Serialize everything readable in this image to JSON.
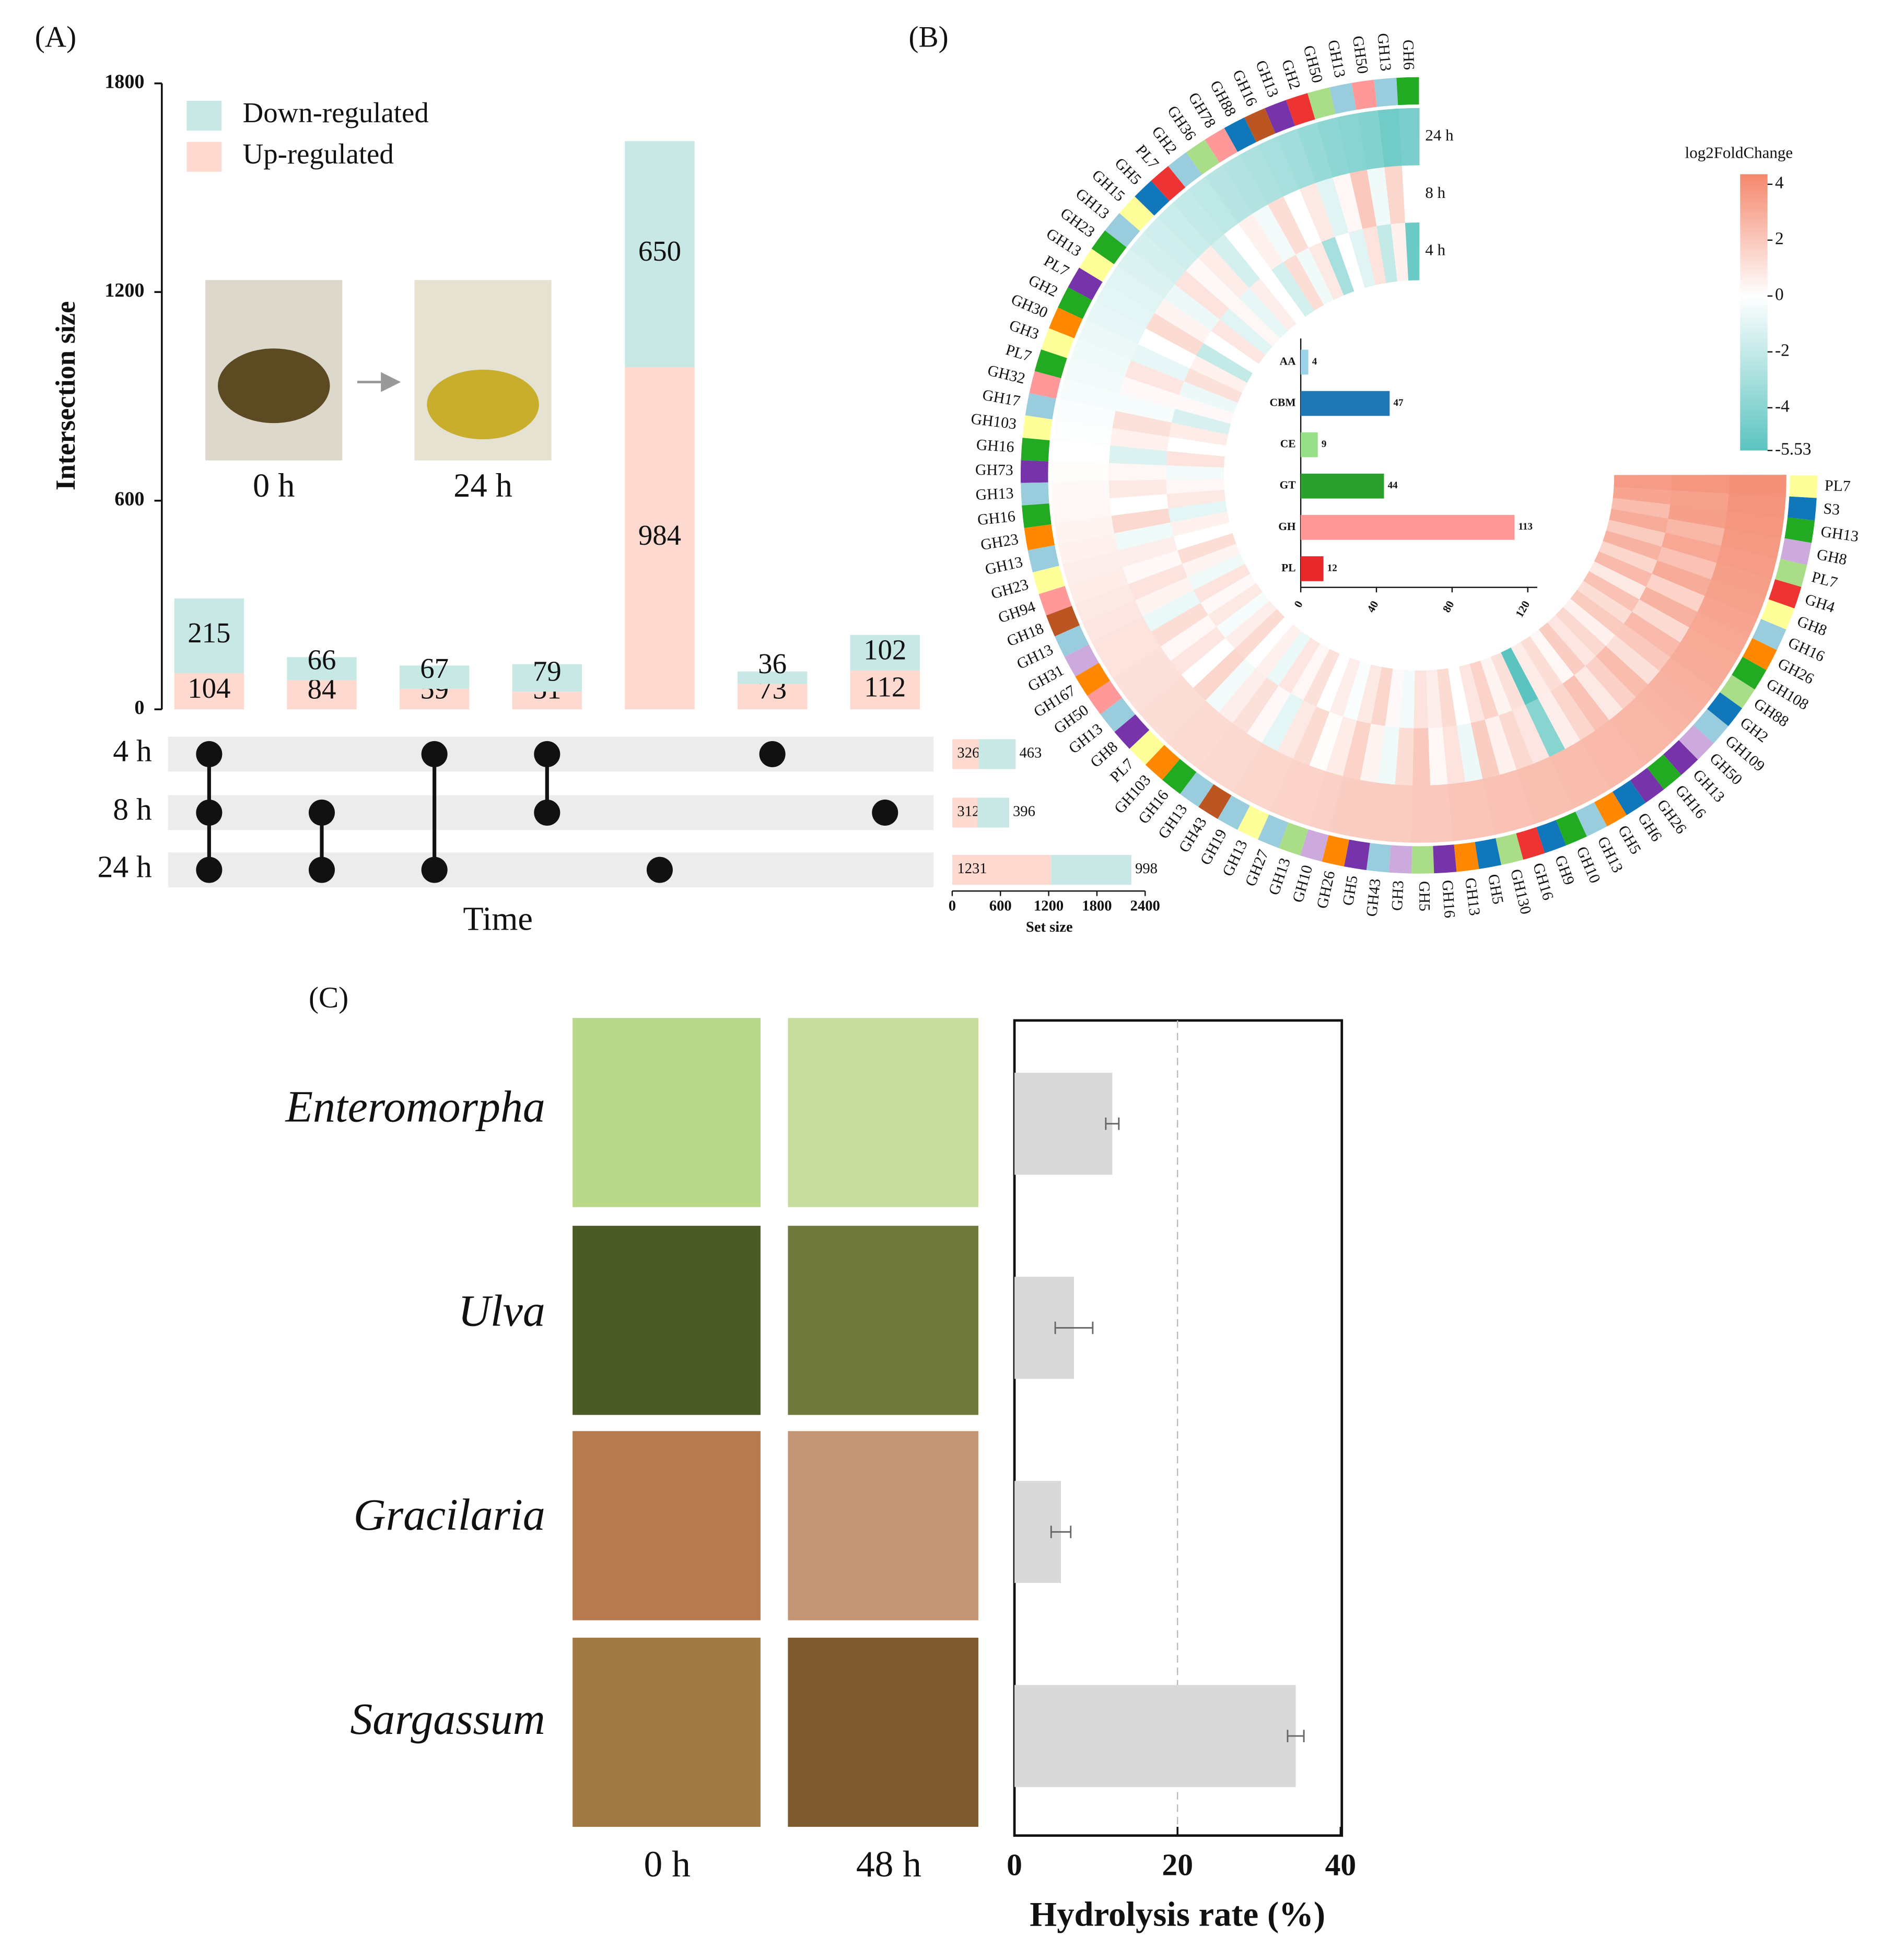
{
  "chart_data": [
    {
      "type": "upset",
      "panel_label": "(A)",
      "ylabel": "Intersection size",
      "xlabel": "Time",
      "ylim": [
        0,
        1800
      ],
      "yticks": [
        0,
        600,
        1200,
        1800
      ],
      "series": [
        {
          "name": "Up-regulated",
          "color": "#fdd9d0",
          "values": [
            104,
            84,
            59,
            51,
            984,
            73,
            112
          ]
        },
        {
          "name": "Down-regulated",
          "color": "#c8e8e6",
          "values": [
            215,
            66,
            67,
            79,
            650,
            36,
            102
          ]
        }
      ],
      "sets": [
        "4 h",
        "8 h",
        "24 h"
      ],
      "intersections": [
        [
          0,
          1,
          2
        ],
        [
          1,
          2
        ],
        [
          0,
          2
        ],
        [
          0,
          1
        ],
        [
          2
        ],
        [
          0
        ],
        [
          1
        ]
      ],
      "set_size_series": [
        {
          "values": [
            326,
            312,
            1231
          ]
        },
        {
          "values": [
            463,
            396,
            998
          ]
        }
      ],
      "set_xlim": [
        0,
        2400
      ],
      "set_xticks": [
        0,
        600,
        1200,
        1800,
        2400
      ],
      "set_xlabel": "Set size",
      "inset_labels": [
        "0 h",
        "24 h"
      ]
    },
    {
      "type": "circular_heatmap",
      "panel_label": "(B)",
      "rows": [
        "24 h",
        "8 h",
        "4 h"
      ],
      "labels": [
        "GH6",
        "GH13",
        "GH50",
        "GH13",
        "GH50",
        "GH2",
        "GH13",
        "GH16",
        "GH88",
        "GH78",
        "GH36",
        "GH2",
        "PL7",
        "GH5",
        "GH15",
        "GH13",
        "GH23",
        "GH13",
        "PL7",
        "GH2",
        "GH30",
        "GH3",
        "PL7",
        "GH32",
        "GH17",
        "GH103",
        "GH16",
        "GH73",
        "GH13",
        "GH16",
        "GH23",
        "GH13",
        "GH23",
        "GH94",
        "GH18",
        "GH13",
        "GH31",
        "GH167",
        "GH50",
        "GH13",
        "GH8",
        "PL7",
        "GH103",
        "GH16",
        "GH13",
        "GH43",
        "GH19",
        "GH13",
        "GH27",
        "GH13",
        "GH10",
        "GH26",
        "GH5",
        "GH43",
        "GH3",
        "GH5",
        "GH16",
        "GH13",
        "GH5",
        "GH130",
        "GH16",
        "GH9",
        "GH10",
        "GH13",
        "GH5",
        "GH6",
        "GH26",
        "GH16",
        "GH13",
        "GH50",
        "GH109",
        "GH2",
        "GH88",
        "GH108",
        "GH26",
        "GH16",
        "GH8",
        "GH4",
        "PL7",
        "GH8",
        "GH13",
        "S3",
        "PL7"
      ],
      "label_colors": [
        "#2a2",
        "#9cd",
        "#f99",
        "#9cd",
        "#ad8",
        "#e33",
        "#73a",
        "#b52",
        "#17b",
        "#f99",
        "#ad8",
        "#9cd",
        "#e33",
        "#17b",
        "#ff9",
        "#9cd",
        "#2a2",
        "#ff9",
        "#73a",
        "#2a2",
        "#f80",
        "#ff9",
        "#2a2",
        "#f99",
        "#9cd",
        "#ff9",
        "#2a2",
        "#73a",
        "#9cd",
        "#2a2",
        "#f80",
        "#9cd",
        "#ff9",
        "#f99",
        "#b52",
        "#9cd",
        "#cad",
        "#f80",
        "#f99",
        "#9cd",
        "#73a",
        "#ff9",
        "#f80",
        "#2a2",
        "#9cd",
        "#b52",
        "#9cd",
        "#ff9",
        "#9cd",
        "#ad8",
        "#cad",
        "#f80",
        "#73a",
        "#9cd",
        "#cad",
        "#ad8",
        "#73a",
        "#f80",
        "#17b",
        "#ad8",
        "#e33",
        "#17b",
        "#2a2",
        "#9cd",
        "#f80",
        "#17b",
        "#73a",
        "#2a2",
        "#73a",
        "#cad",
        "#9cd",
        "#17b",
        "#ad8",
        "#2a2",
        "#f80",
        "#9cd",
        "#ff9",
        "#e33",
        "#ad8",
        "#cad",
        "#2a2",
        "#17b",
        "#ff9"
      ],
      "values": [
        [
          -4.5,
          -4.8,
          -4.2,
          -4,
          -3.8,
          -3.5,
          -3.2,
          -3,
          -2.8,
          -2.6,
          -2.4,
          -2.2,
          -2,
          -1.8,
          -1.6,
          -1.4,
          -1.2,
          -1,
          -0.9,
          -0.8,
          -0.6,
          -0.5,
          -0.4,
          -0.3,
          -0.2,
          -0.1,
          0,
          0.1,
          0.2,
          0.3,
          0.4,
          0.5,
          0.6,
          0.7,
          0.8,
          0.9,
          1,
          1,
          1.1,
          1.1,
          1.2,
          1.2,
          1.3,
          1.3,
          1.4,
          1.4,
          1.5,
          1.5,
          1.6,
          1.6,
          1.7,
          1.8,
          1.8,
          1.9,
          1.9,
          2,
          2,
          2.1,
          2.1,
          2.2,
          2.2,
          2.3,
          2.3,
          2.4,
          2.4,
          2.5,
          2.5,
          2.6,
          2.6,
          2.7,
          2.8,
          2.9,
          3,
          3.1,
          3.2,
          3.3,
          3.4,
          3.5,
          3.6,
          3.7,
          3.8,
          3.9,
          4
        ],
        [
          0,
          1.5,
          -0.5,
          2,
          0.3,
          -1,
          0.8,
          0,
          1.2,
          -0.4,
          0.5,
          0,
          -1.5,
          0.7,
          0.2,
          1,
          -0.6,
          0.4,
          1.3,
          0,
          -0.8,
          0.9,
          0.2,
          -0.3,
          1.1,
          0.5,
          -1.2,
          0.3,
          0.8,
          0,
          1.4,
          -0.5,
          0.6,
          0.2,
          1,
          0.4,
          -0.7,
          1.2,
          0.3,
          0.9,
          0,
          1.5,
          -0.4,
          0.6,
          1.1,
          0.2,
          -0.9,
          0.8,
          1.3,
          0.1,
          0.7,
          1.6,
          0.4,
          -0.5,
          1.2,
          2,
          0.3,
          1,
          -0.6,
          1.8,
          0.5,
          1.4,
          0.9,
          -4,
          0.6,
          1.5,
          2.2,
          0.8,
          1.7,
          2.4,
          1.1,
          2,
          2.5,
          1.3,
          2.8,
          1.6,
          3,
          2.2,
          3.2,
          2.6,
          3.5,
          3.4,
          3.8
        ],
        [
          -5,
          0.5,
          -2,
          1,
          -1,
          0,
          -3,
          0.8,
          -0.5,
          1.2,
          -1.5,
          0,
          0.6,
          -0.8,
          0.3,
          -1,
          0.9,
          0,
          -2,
          0.5,
          1.1,
          -0.6,
          0.2,
          -1.3,
          0.7,
          0,
          1,
          -0.4,
          0.3,
          0.8,
          -0.9,
          0.5,
          0,
          1.2,
          0.4,
          -0.5,
          1,
          0.2,
          0.8,
          -0.3,
          0.6,
          1.3,
          0,
          0.5,
          -0.7,
          0.9,
          0.3,
          1.1,
          0,
          0.6,
          -0.2,
          0.8,
          1.5,
          0.2,
          -0.4,
          1,
          0.6,
          1.3,
          0,
          0.9,
          1.6,
          0.4,
          1.1,
          -5.53,
          0.7,
          1.2,
          0.3,
          1.8,
          0.9,
          1.4,
          0.5,
          1.9,
          1.2,
          2.2,
          0.8,
          2.5,
          1.5,
          2.8,
          1.9,
          3,
          2.4,
          3.3,
          3.6
        ]
      ],
      "colorbar_title": "log2FoldChange",
      "clim": [
        -5.53,
        4.36
      ],
      "cticks": [
        4,
        2,
        0,
        -2,
        -4,
        -5.53
      ],
      "cmap": [
        "#5bc4c0",
        "#ffffff",
        "#f4876c"
      ],
      "inset": {
        "type": "bar",
        "categories": [
          "AA",
          "CBM",
          "CE",
          "GT",
          "GH",
          "PL"
        ],
        "values": [
          4,
          47,
          9,
          44,
          113,
          12
        ],
        "colors": [
          "#9dd3e8",
          "#1f77b4",
          "#98df8a",
          "#2ca02c",
          "#ff9896",
          "#e8282b"
        ],
        "xlim": [
          0,
          125
        ],
        "xticks": [
          0,
          40,
          80,
          120
        ]
      }
    },
    {
      "type": "hbar",
      "panel_label": "(C)",
      "categories": [
        "Enteromorpha",
        "Ulva",
        "Gracilaria",
        "Sargassum"
      ],
      "values": [
        12,
        7.3,
        5.7,
        34.5
      ],
      "errors": [
        0.8,
        2.3,
        1.2,
        1
      ],
      "color": "#d9d9d9",
      "xlim": [
        0,
        40
      ],
      "xticks": [
        0,
        20,
        40
      ],
      "grid": true,
      "xlabel": "Hydrolysis rate (%)",
      "photo_labels": [
        "0 h",
        "48 h"
      ]
    }
  ]
}
